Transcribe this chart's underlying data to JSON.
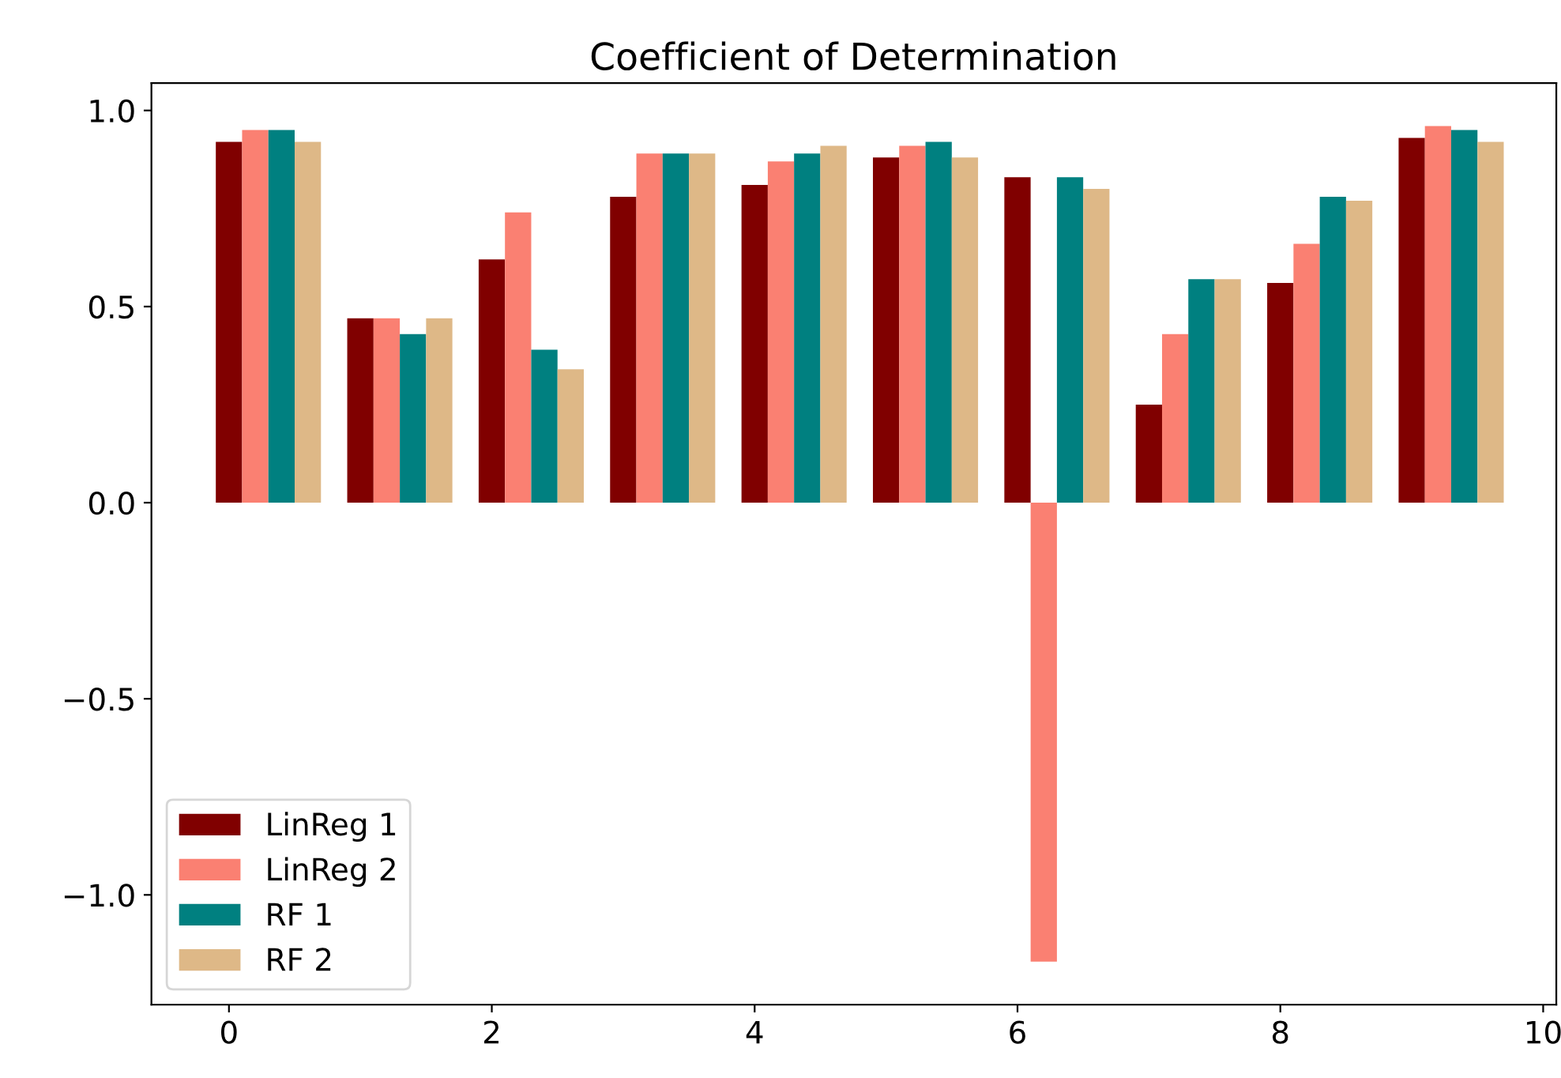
{
  "chart_data": {
    "type": "bar",
    "title": "Coefficient of Determination",
    "xlim": [
      -0.59,
      10.1
    ],
    "xticks": [
      0,
      2,
      4,
      6,
      8,
      10
    ],
    "ylim": [
      -1.28,
      1.07
    ],
    "yticks": [
      {
        "value": -1.0,
        "label": "−1.0"
      },
      {
        "value": -0.5,
        "label": "−0.5"
      },
      {
        "value": 0.0,
        "label": "0.0"
      },
      {
        "value": 0.5,
        "label": "0.5"
      },
      {
        "value": 1.0,
        "label": "1.0"
      }
    ],
    "grid": false,
    "legend": "bottom left",
    "series": [
      {
        "name": "LinReg 1",
        "color": "#800000",
        "x": [
          0,
          1,
          2,
          3,
          4,
          5,
          6,
          7,
          8,
          9
        ],
        "values": [
          0.92,
          0.47,
          0.62,
          0.78,
          0.81,
          0.88,
          0.83,
          0.25,
          0.56,
          0.93
        ]
      },
      {
        "name": "LinReg 2",
        "color": "#fa8072",
        "x": [
          0.2,
          1.2,
          2.2,
          3.2,
          4.2,
          5.2,
          6.2,
          7.2,
          8.2,
          9.2
        ],
        "values": [
          0.95,
          0.47,
          0.74,
          0.89,
          0.87,
          0.91,
          -1.17,
          0.43,
          0.66,
          0.96
        ]
      },
      {
        "name": "RF 1",
        "color": "#008080",
        "x": [
          0.4,
          1.4,
          2.4,
          3.4,
          4.4,
          5.4,
          6.4,
          7.4,
          8.4,
          9.4
        ],
        "values": [
          0.95,
          0.43,
          0.39,
          0.89,
          0.89,
          0.92,
          0.83,
          0.57,
          0.78,
          0.95
        ]
      },
      {
        "name": "RF 2",
        "color": "#deb887",
        "x": [
          0.6,
          1.6,
          2.6,
          3.6,
          4.6,
          5.6,
          6.6,
          7.6,
          8.6,
          9.6
        ],
        "values": [
          0.92,
          0.47,
          0.34,
          0.89,
          0.91,
          0.88,
          0.8,
          0.57,
          0.77,
          0.92
        ]
      }
    ]
  }
}
